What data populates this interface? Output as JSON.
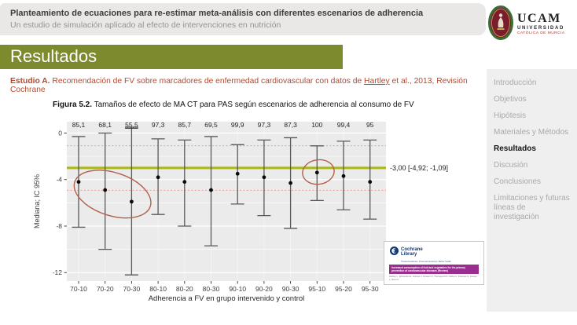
{
  "header": {
    "title": "Planteamiento de ecuaciones para re-estimar meta-análisis con diferentes escenarios de adherencia",
    "subtitle": "Un estudio de simulación aplicado al efecto de intervenciones en nutrición"
  },
  "logo": {
    "acronym": "UCAM",
    "line1": "UNIVERSIDAD",
    "line2": "CATÓLICA DE MURCIA"
  },
  "banner": {
    "label": "Resultados"
  },
  "study": {
    "prefix": "Estudio A.",
    "before_link": " Recomendación de FV sobre marcadores de enfermedad cardiovascular con datos de ",
    "link": "Hartley",
    "after_link": " et al., 2013, Revisión Cochrane"
  },
  "figure": {
    "label": "Figura 5.2.",
    "caption": " Tamaños de efecto de MA CT para PAS según escenarios de adherencia al consumo de FV"
  },
  "sidebar": {
    "items": [
      {
        "label": "Introducción",
        "active": false
      },
      {
        "label": "Objetivos",
        "active": false
      },
      {
        "label": "Hipótesis",
        "active": false
      },
      {
        "label": "Materiales y Métodos",
        "active": false
      },
      {
        "label": "Resultados",
        "active": true
      },
      {
        "label": "Discusión",
        "active": false
      },
      {
        "label": "Conclusiones",
        "active": false
      },
      {
        "label": "Limitaciones y futuras líneas de investigación",
        "active": false
      }
    ]
  },
  "chart_data": {
    "type": "scatter",
    "categories": [
      "70-10",
      "70-20",
      "70-30",
      "80-10",
      "80-20",
      "80-30",
      "90-10",
      "90-20",
      "90-30",
      "95-10",
      "95-20",
      "95-30"
    ],
    "adherence_labels": [
      "85,1",
      "68,1",
      "55,5",
      "97,3",
      "85,7",
      "69,5",
      "99,9",
      "97,3",
      "87,3",
      "100",
      "99,4",
      "95"
    ],
    "underlined_label_index": 2,
    "medians": [
      -4.2,
      -4.9,
      -5.9,
      -3.8,
      -4.2,
      -4.9,
      -3.5,
      -3.8,
      -4.3,
      -3.4,
      -3.7,
      -4.2
    ],
    "ci_high": [
      -0.3,
      0.0,
      0.5,
      -0.5,
      -0.6,
      -0.3,
      -1.0,
      -0.6,
      -0.4,
      -1.1,
      -0.7,
      -0.6
    ],
    "ci_low": [
      -8.1,
      -10.0,
      -12.2,
      -7.0,
      -8.0,
      -9.7,
      -6.1,
      -7.1,
      -8.2,
      -5.8,
      -6.6,
      -7.4
    ],
    "reference_line": {
      "value": -3.0,
      "label": "-3,00 [-4,92; -1,09]",
      "ci_low": -4.92,
      "ci_high": -1.09
    },
    "ylabel": "Mediana; IC 95%",
    "xlabel": "Adherencia a FV en grupo intervenido y control",
    "yticks": [
      0,
      -4,
      -8,
      -12
    ],
    "yminor": [
      -2,
      -6,
      -10
    ],
    "ylim": [
      1.0,
      -12.75
    ],
    "grid": true,
    "highlight_ellipses": [
      {
        "center_cat": 1.28,
        "center_val": -5.25,
        "rx_cat": 1.5,
        "ry_val": 1.85,
        "rotate": 18
      },
      {
        "center_cat": 9.05,
        "center_val": -3.35,
        "rx_cat": 0.6,
        "ry_val": 1.05,
        "rotate": -8
      }
    ],
    "colors": {
      "panel": "#ebebeb",
      "grid": "#ffffff",
      "point": "#0a0a0a",
      "errorbar": "#595959",
      "reference": "#a9b614",
      "ci_dotted": "#f09a9a",
      "ellipse": "#b2604a"
    }
  },
  "cochrane_card": {
    "logo_line1": "Cochrane",
    "logo_line2": "Library",
    "tagline": "Trusted evidence. Informed decisions. Better health.",
    "banner": "Increased consumption of fruit and vegetables for the primary prevention of cardiovascular diseases (Review)",
    "authors": "Hartley L, Igbinedion E, Holmes J, Flowers N, Thorogood M, Clarke A, Stranges S, Hooper L, Rees K"
  },
  "colors": {
    "banner_green": "#7d8b2e",
    "study_red": "#b5482e",
    "header_gray": "#e9e8e6",
    "sidebar_gray": "#efefef",
    "ucam_red": "#ad2f2f",
    "cochrane_purple": "#992d90",
    "cochrane_navy": "#16356e"
  }
}
